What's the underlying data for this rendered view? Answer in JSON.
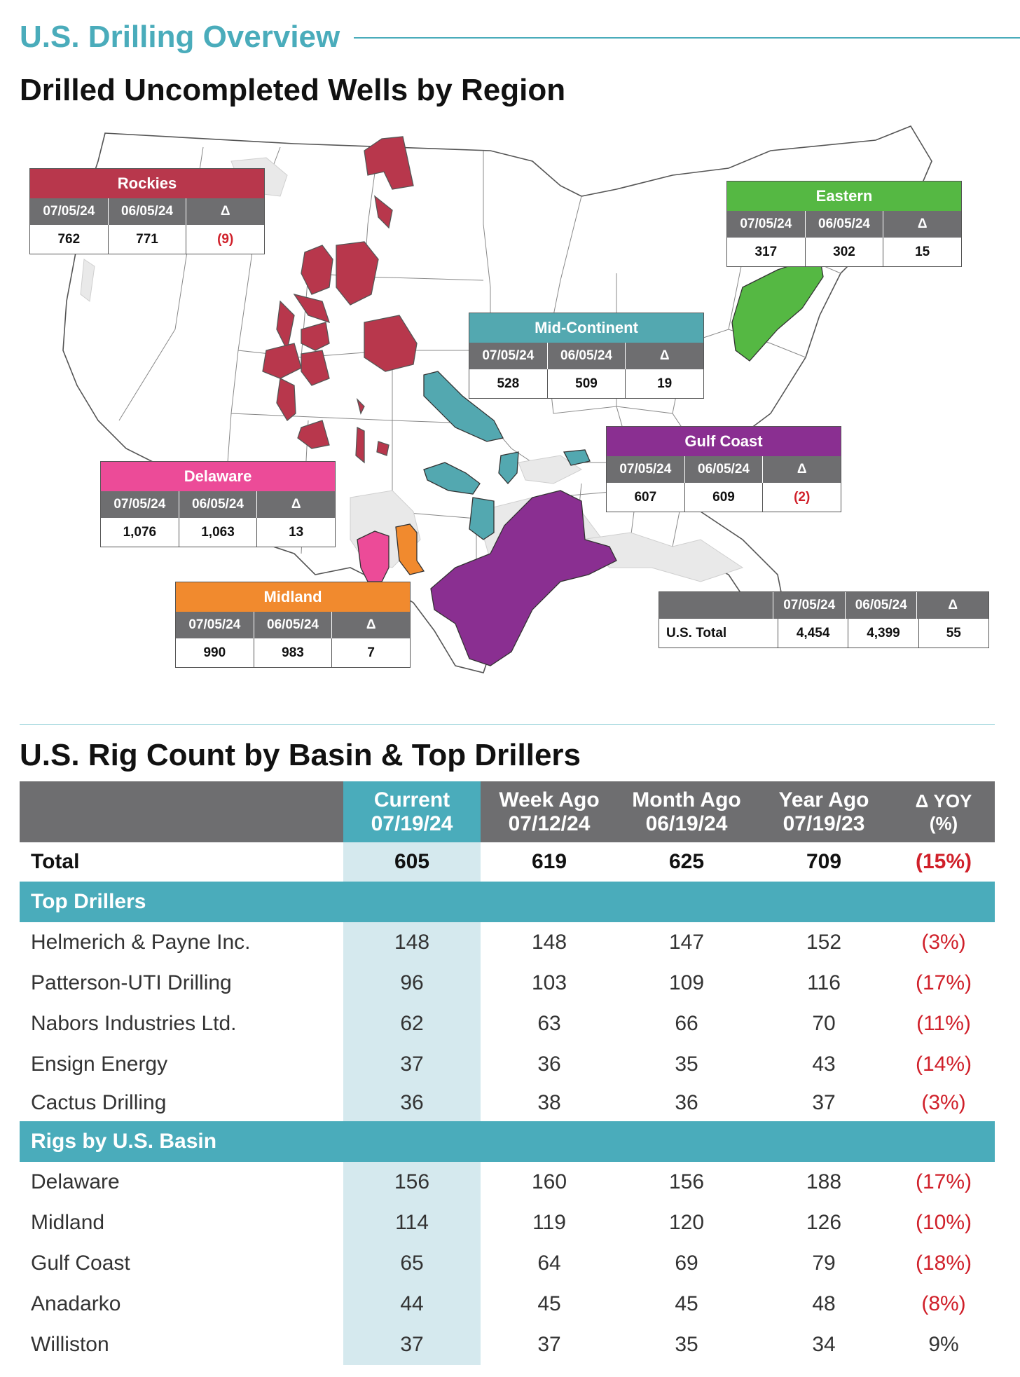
{
  "header": {
    "section_title": "U.S. Drilling Overview",
    "map_title": "Drilled Uncompleted Wells by Region",
    "rig_title": "U.S. Rig Count by Basin & Top Drillers"
  },
  "colors": {
    "accent": "#4aacbb",
    "rockies": "#b8374c",
    "eastern": "#55b843",
    "mid_continent": "#53a8b0",
    "gulf_coast": "#8a2f91",
    "delaware": "#ec4b98",
    "midland": "#f18a2e",
    "negative": "#d0202a",
    "header_gray": "#6e6e70"
  },
  "regions": {
    "rockies": {
      "name": "Rockies",
      "d1": "07/05/24",
      "d2": "06/05/24",
      "delta_label": "Δ",
      "v1": "762",
      "v2": "771",
      "delta": "(9)"
    },
    "eastern": {
      "name": "Eastern",
      "d1": "07/05/24",
      "d2": "06/05/24",
      "delta_label": "Δ",
      "v1": "317",
      "v2": "302",
      "delta": "15"
    },
    "mid_continent": {
      "name": "Mid-Continent",
      "d1": "07/05/24",
      "d2": "06/05/24",
      "delta_label": "Δ",
      "v1": "528",
      "v2": "509",
      "delta": "19"
    },
    "gulf_coast": {
      "name": "Gulf Coast",
      "d1": "07/05/24",
      "d2": "06/05/24",
      "delta_label": "Δ",
      "v1": "607",
      "v2": "609",
      "delta": "(2)"
    },
    "delaware": {
      "name": "Delaware",
      "d1": "07/05/24",
      "d2": "06/05/24",
      "delta_label": "Δ",
      "v1": "1,076",
      "v2": "1,063",
      "delta": "13"
    },
    "midland": {
      "name": "Midland",
      "d1": "07/05/24",
      "d2": "06/05/24",
      "delta_label": "Δ",
      "v1": "990",
      "v2": "983",
      "delta": "7"
    },
    "us_total": {
      "name": "U.S. Total",
      "d1": "07/05/24",
      "d2": "06/05/24",
      "delta_label": "Δ",
      "v1": "4,454",
      "v2": "4,399",
      "delta": "55"
    }
  },
  "rig_table": {
    "headers": [
      {
        "l1": "Current",
        "l2": "07/19/24"
      },
      {
        "l1": "Week Ago",
        "l2": "07/12/24"
      },
      {
        "l1": "Month Ago",
        "l2": "06/19/24"
      },
      {
        "l1": "Year Ago",
        "l2": "07/19/23"
      },
      {
        "l1": "Δ YOY",
        "l2": "(%)"
      }
    ],
    "total": {
      "label": "Total",
      "values": [
        "605",
        "619",
        "625",
        "709",
        "(15%)"
      ]
    },
    "top_drillers_label": "Top Drillers",
    "top_drillers": [
      {
        "label": "Helmerich & Payne Inc.",
        "values": [
          "148",
          "148",
          "147",
          "152",
          "(3%)"
        ]
      },
      {
        "label": "Patterson-UTI Drilling",
        "values": [
          "96",
          "103",
          "109",
          "116",
          "(17%)"
        ]
      },
      {
        "label": "Nabors Industries Ltd.",
        "values": [
          "62",
          "63",
          "66",
          "70",
          "(11%)"
        ]
      },
      {
        "label": "Ensign Energy",
        "values": [
          "37",
          "36",
          "35",
          "43",
          "(14%)"
        ]
      },
      {
        "label": "Cactus Drilling",
        "values": [
          "36",
          "38",
          "36",
          "37",
          "(3%)"
        ]
      }
    ],
    "basins_label": "Rigs by U.S. Basin",
    "basins": [
      {
        "label": "Delaware",
        "values": [
          "156",
          "160",
          "156",
          "188",
          "(17%)"
        ]
      },
      {
        "label": "Midland",
        "values": [
          "114",
          "119",
          "120",
          "126",
          "(10%)"
        ]
      },
      {
        "label": "Gulf Coast",
        "values": [
          "65",
          "64",
          "69",
          "79",
          "(18%)"
        ]
      },
      {
        "label": "Anadarko",
        "values": [
          "44",
          "45",
          "45",
          "48",
          "(8%)"
        ]
      },
      {
        "label": "Williston",
        "values": [
          "37",
          "37",
          "35",
          "34",
          "9%"
        ]
      }
    ]
  }
}
